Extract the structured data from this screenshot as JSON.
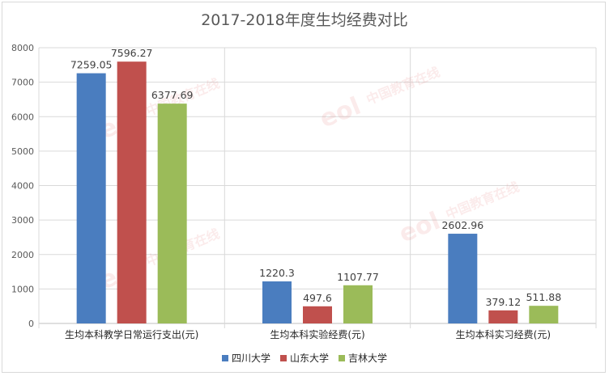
{
  "chart_data": {
    "type": "bar",
    "title": "2017-2018年度生均经费对比",
    "categories": [
      "生均本科教学日常运行支出(元)",
      "生均本科实验经费(元)",
      "生均本科实习经费(元)"
    ],
    "series": [
      {
        "name": "四川大学",
        "values": [
          7259.05,
          1220.3,
          2602.96
        ],
        "labels": [
          "7259.05",
          "1220.3",
          "2602.96"
        ],
        "color": "#4a7dbf"
      },
      {
        "name": "山东大学",
        "values": [
          7596.27,
          497.6,
          379.12
        ],
        "labels": [
          "7596.27",
          "497.6",
          "379.12"
        ],
        "color": "#c0504d"
      },
      {
        "name": "吉林大学",
        "values": [
          6377.69,
          1107.77,
          511.88
        ],
        "labels": [
          "6377.69",
          "1107.77",
          "511.88"
        ],
        "color": "#9bbb59"
      }
    ],
    "ylim": [
      0,
      8000
    ],
    "yticks": [
      0,
      1000,
      2000,
      3000,
      4000,
      5000,
      6000,
      7000,
      8000
    ],
    "grid": true,
    "legend_position": "bottom"
  },
  "watermark": {
    "text": "中国教育在线",
    "logo": "eol"
  }
}
